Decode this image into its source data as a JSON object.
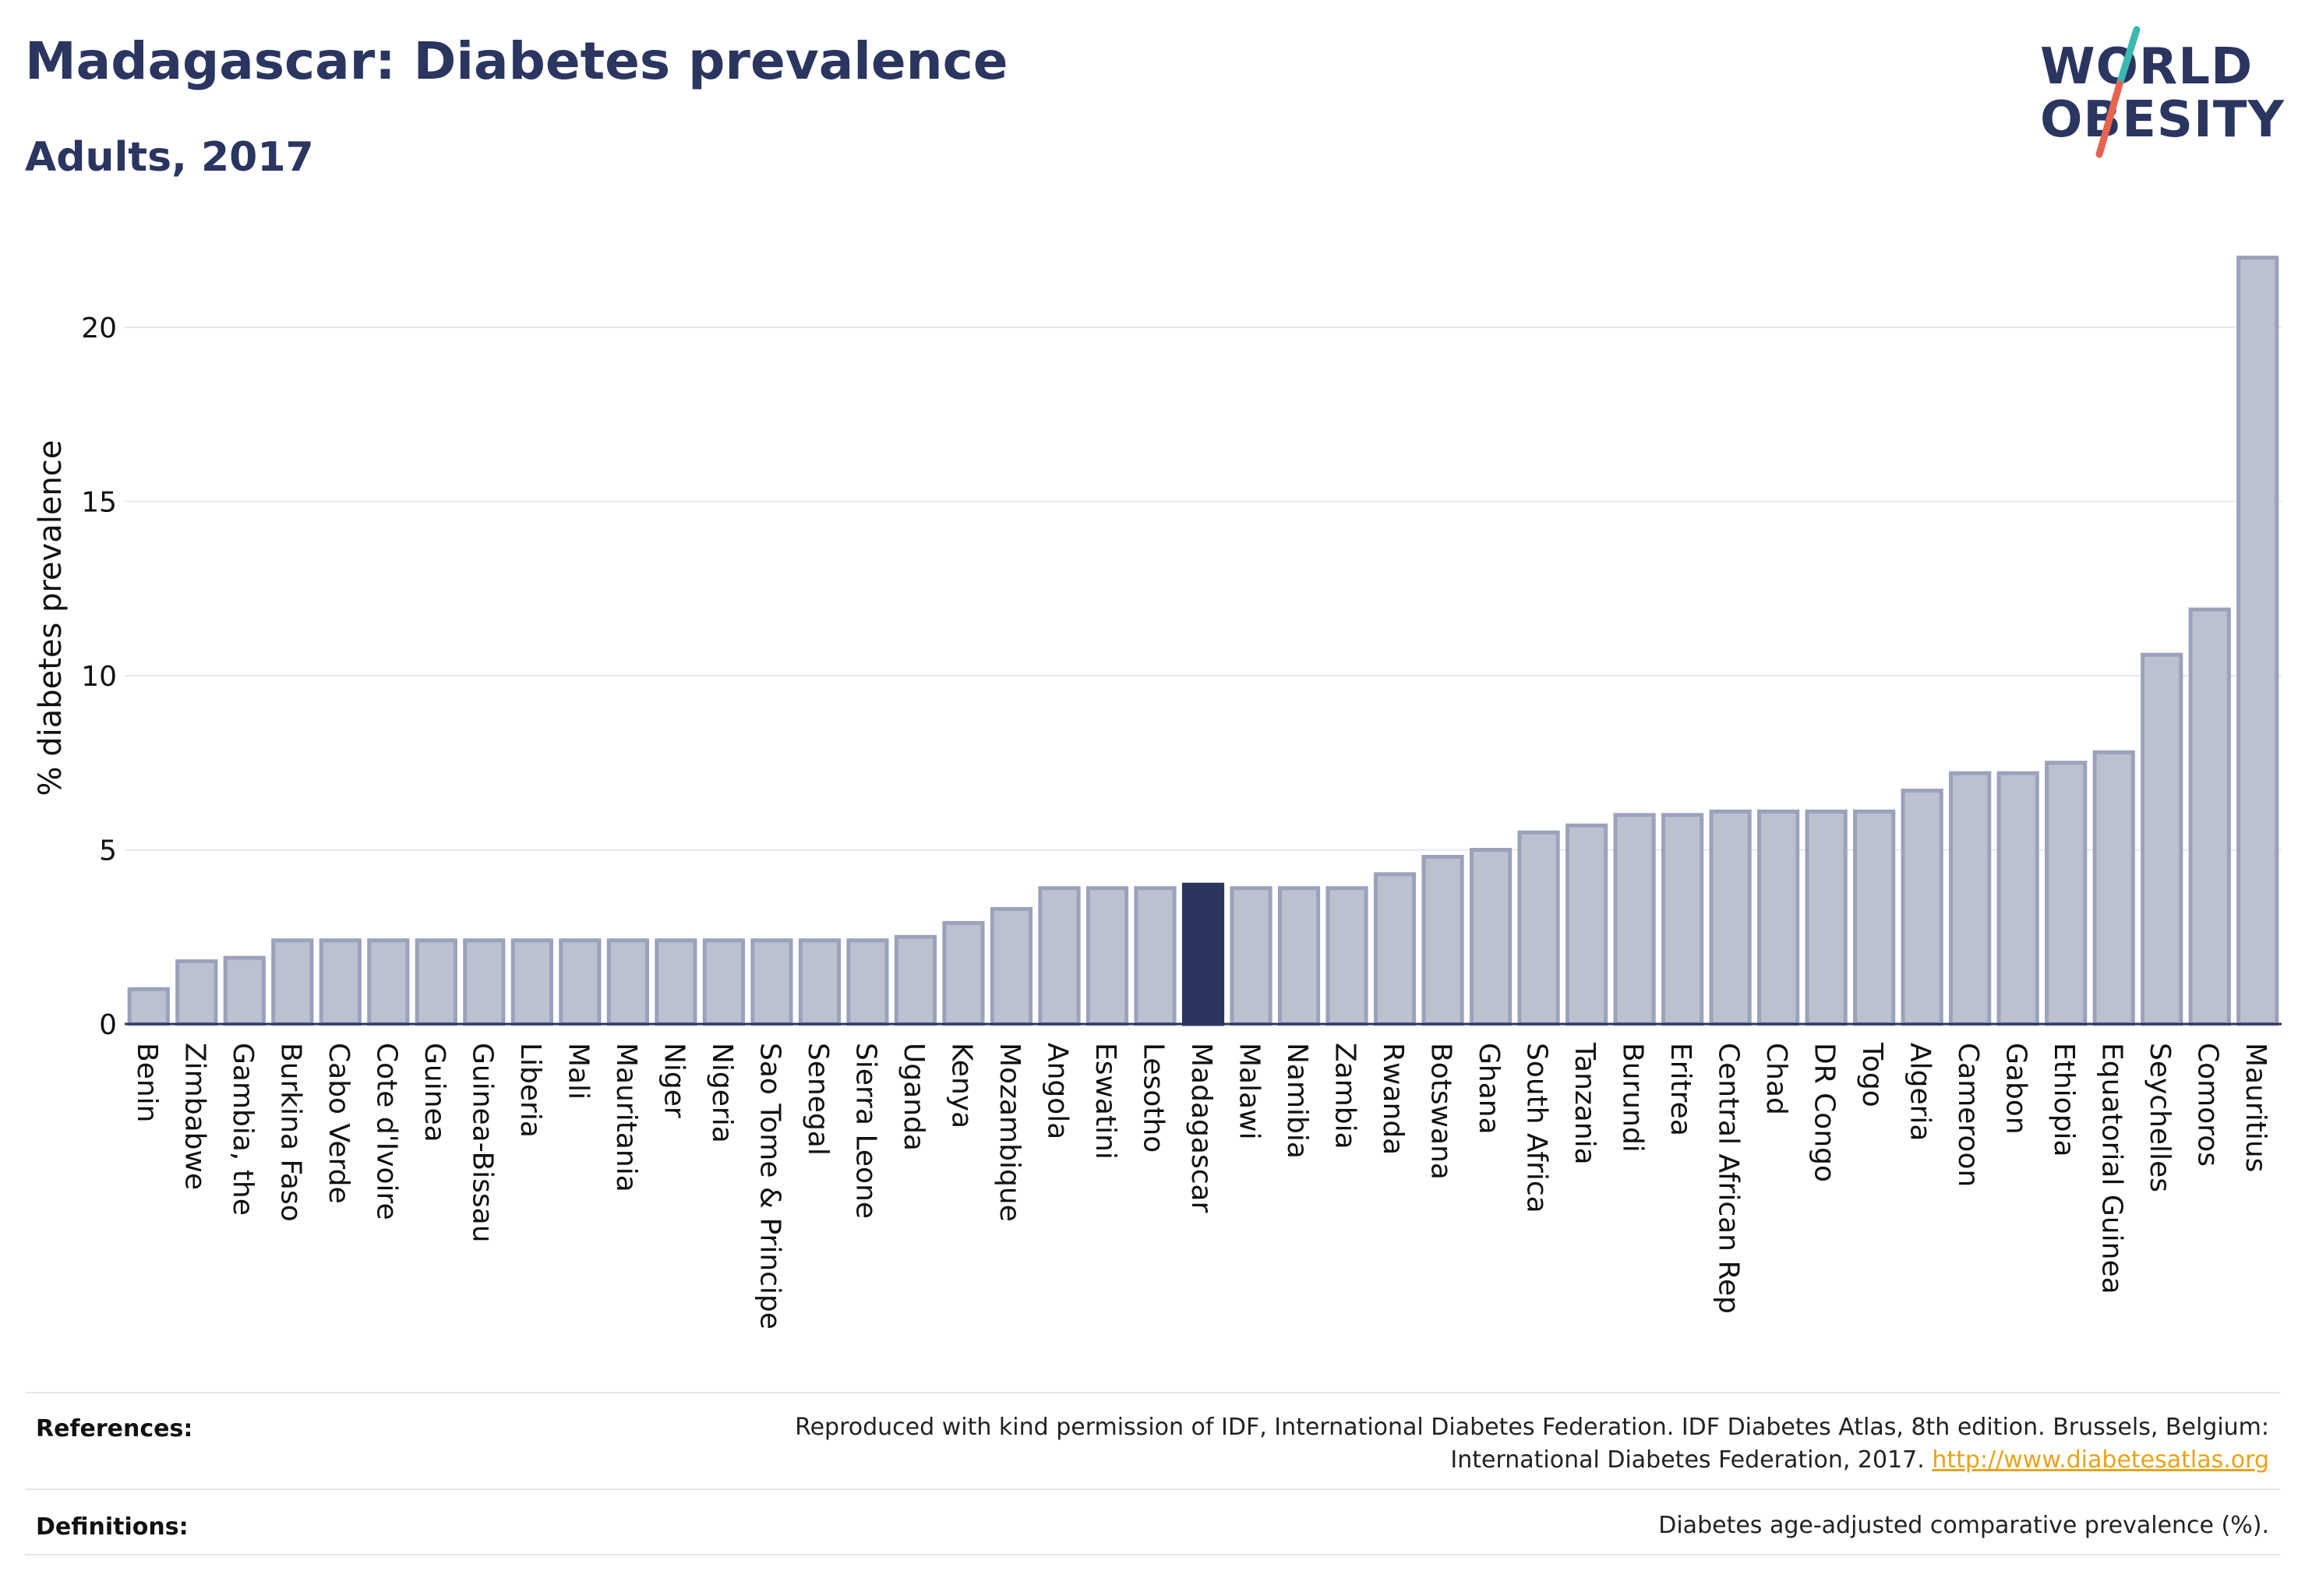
{
  "header": {
    "title": "Madagascar: Diabetes prevalence",
    "subtitle": "Adults, 2017"
  },
  "logo": {
    "line1": "WORLD",
    "line2": "OBESITY",
    "slash_colors": [
      "#3bb8b0",
      "#e8634f"
    ]
  },
  "colors": {
    "bar_fill": "#bcc1d0",
    "bar_stroke": "#9aa2bc",
    "highlight": "#2a3560",
    "grid": "#e6e8ee",
    "axis": "#2a3560",
    "link": "#e8a317"
  },
  "chart_data": {
    "type": "bar",
    "highlight": "Madagascar",
    "categories": [
      "Benin",
      "Zimbabwe",
      "Gambia, the",
      "Burkina Faso",
      "Cabo Verde",
      "Cote d'Ivoire",
      "Guinea",
      "Guinea-Bissau",
      "Liberia",
      "Mali",
      "Mauritania",
      "Niger",
      "Nigeria",
      "Sao Tome & Principe",
      "Senegal",
      "Sierra Leone",
      "Uganda",
      "Kenya",
      "Mozambique",
      "Angola",
      "Eswatini",
      "Lesotho",
      "Madagascar",
      "Malawi",
      "Namibia",
      "Zambia",
      "Rwanda",
      "Botswana",
      "Ghana",
      "South Africa",
      "Tanzania",
      "Burundi",
      "Eritrea",
      "Central African Rep",
      "Chad",
      "DR Congo",
      "Togo",
      "Algeria",
      "Cameroon",
      "Gabon",
      "Ethiopia",
      "Equatorial Guinea",
      "Seychelles",
      "Comoros",
      "Mauritius"
    ],
    "values": [
      1.0,
      1.8,
      1.9,
      2.4,
      2.4,
      2.4,
      2.4,
      2.4,
      2.4,
      2.4,
      2.4,
      2.4,
      2.4,
      2.4,
      2.4,
      2.4,
      2.5,
      2.9,
      3.3,
      3.9,
      3.9,
      3.9,
      4.0,
      3.9,
      3.9,
      3.9,
      4.3,
      4.8,
      5.0,
      5.5,
      5.7,
      6.0,
      6.0,
      6.1,
      6.1,
      6.1,
      6.1,
      6.7,
      7.2,
      7.2,
      7.5,
      7.8,
      10.6,
      11.9,
      22.0
    ],
    "ylabel": "% diabetes prevalence",
    "xlabel": "",
    "yticks": [
      0,
      5,
      10,
      15,
      20
    ],
    "ylim": [
      0,
      22.6
    ],
    "grid": true
  },
  "footer": {
    "references_label": "References:",
    "references_line1": "Reproduced with kind permission of IDF, International Diabetes Federation. IDF Diabetes Atlas, 8th edition. Brussels, Belgium:",
    "references_line2": "International Diabetes Federation, 2017.",
    "references_link": "http://www.diabetesatlas.org",
    "definitions_label": "Definitions:",
    "definitions_text": "Diabetes age-adjusted comparative prevalence (%)."
  }
}
